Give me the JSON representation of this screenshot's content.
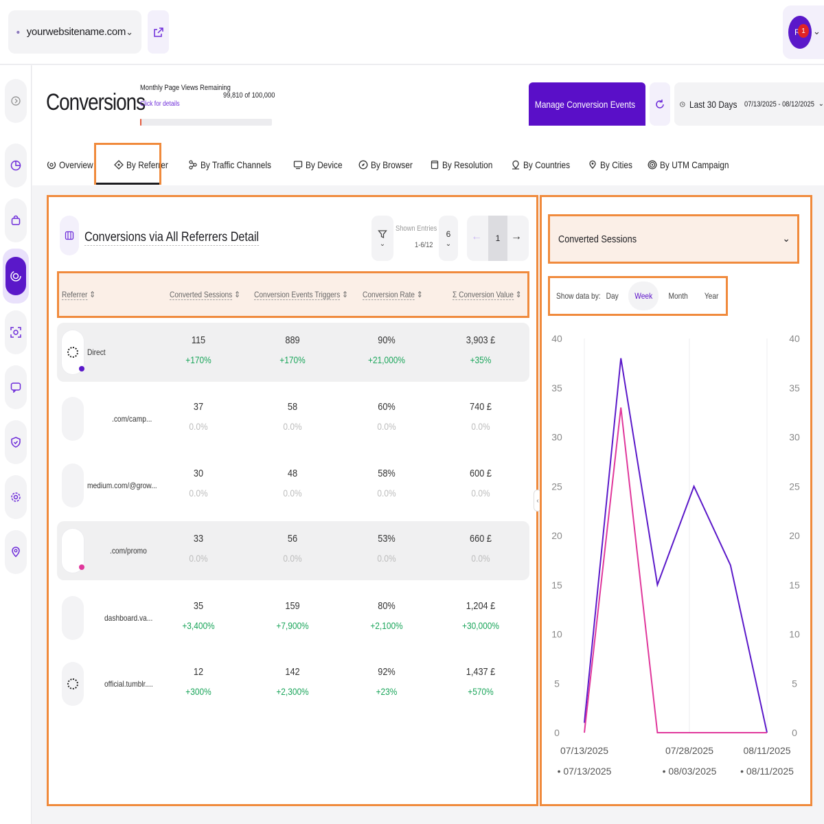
{
  "topbar": {
    "site_name": "yourwebsitename.com",
    "user_initials": "RF",
    "notification_count": "1"
  },
  "header": {
    "title": "Conversions",
    "quota_label": "Monthly Page Views Remaining",
    "quota_link": "Click for details",
    "quota_value": "99,810 of 100,000",
    "quota_used_fraction": 0.0019,
    "manage_button": "Manage Conversion Events",
    "period_label": "Last 30 Days",
    "date_range": "07/13/2025 - 08/12/2025"
  },
  "tabs": [
    {
      "label": "Overview",
      "icon": "overview-icon"
    },
    {
      "label": "By Referrer",
      "icon": "referrer-icon",
      "active": true
    },
    {
      "label": "By Traffic Channels",
      "icon": "channels-icon"
    },
    {
      "label": "By Device",
      "icon": "device-icon"
    },
    {
      "label": "By Browser",
      "icon": "browser-icon"
    },
    {
      "label": "By Resolution",
      "icon": "resolution-icon"
    },
    {
      "label": "By Countries",
      "icon": "countries-icon"
    },
    {
      "label": "By Cities",
      "icon": "cities-icon"
    },
    {
      "label": "By UTM Campaign",
      "icon": "utm-icon"
    }
  ],
  "table": {
    "title": "Conversions via All Referrers Detail",
    "shown_entries_label": "Shown Entries",
    "shown_entries_range": "1-6/12",
    "entries_per_page": "6",
    "current_page": "1",
    "columns": [
      "Referrer",
      "Converted Sessions",
      "Conversion Events Triggers",
      "Conversion Rate",
      "Σ Conversion Value"
    ],
    "rows": [
      {
        "referrer": "Direct",
        "sessions": "115",
        "sessions_change": "+170%",
        "triggers": "889",
        "triggers_change": "+170%",
        "rate": "90%",
        "rate_change": "+21,000%",
        "value": "3,903 £",
        "value_change": "+35%"
      },
      {
        "referrer": ".com/camp...",
        "sessions": "37",
        "sessions_change": "0.0%",
        "triggers": "58",
        "triggers_change": "0.0%",
        "rate": "60%",
        "rate_change": "0.0%",
        "value": "740 £",
        "value_change": "0.0%"
      },
      {
        "referrer": "medium.com/@grow...",
        "sessions": "30",
        "sessions_change": "0.0%",
        "triggers": "48",
        "triggers_change": "0.0%",
        "rate": "58%",
        "rate_change": "0.0%",
        "value": "600 £",
        "value_change": "0.0%"
      },
      {
        "referrer": ".com/promo",
        "sessions": "33",
        "sessions_change": "0.0%",
        "triggers": "56",
        "triggers_change": "0.0%",
        "rate": "53%",
        "rate_change": "0.0%",
        "value": "660 £",
        "value_change": "0.0%"
      },
      {
        "referrer": "dashboard.va...",
        "sessions": "35",
        "sessions_change": "+3,400%",
        "triggers": "159",
        "triggers_change": "+7,900%",
        "rate": "80%",
        "rate_change": "+2,100%",
        "value": "1,204 £",
        "value_change": "+30,000%"
      },
      {
        "referrer": "official.tumblr....",
        "sessions": "12",
        "sessions_change": "+300%",
        "triggers": "142",
        "triggers_change": "+2,300%",
        "rate": "92%",
        "rate_change": "+23%",
        "value": "1,437 £",
        "value_change": "+570%"
      }
    ]
  },
  "chart_panel": {
    "metric": "Converted Sessions",
    "show_by_label": "Show data by:",
    "periods": [
      "Day",
      "Week",
      "Month",
      "Year"
    ],
    "active_period": "Week"
  },
  "colors": {
    "accent": "#5a0fc8",
    "highlight": "#f08a3c",
    "positive": "#1aa55a",
    "series_current": "#5a18c9",
    "series_previous": "#e0379b"
  },
  "chart_data": {
    "type": "line",
    "x_ticks_current": [
      "07/13/2025",
      "07/28/2025",
      "08/11/2025"
    ],
    "x_ticks_previous": [
      "07/13/2025",
      "08/03/2025",
      "08/11/2025"
    ],
    "ylim": [
      0,
      40
    ],
    "y_ticks": [
      0,
      5,
      10,
      15,
      20,
      25,
      30,
      35,
      40
    ],
    "series": [
      {
        "values": [
          1,
          38,
          15,
          25,
          17,
          0
        ]
      },
      {
        "values": [
          0,
          33,
          0,
          0,
          0,
          0
        ]
      }
    ],
    "grid": true
  }
}
